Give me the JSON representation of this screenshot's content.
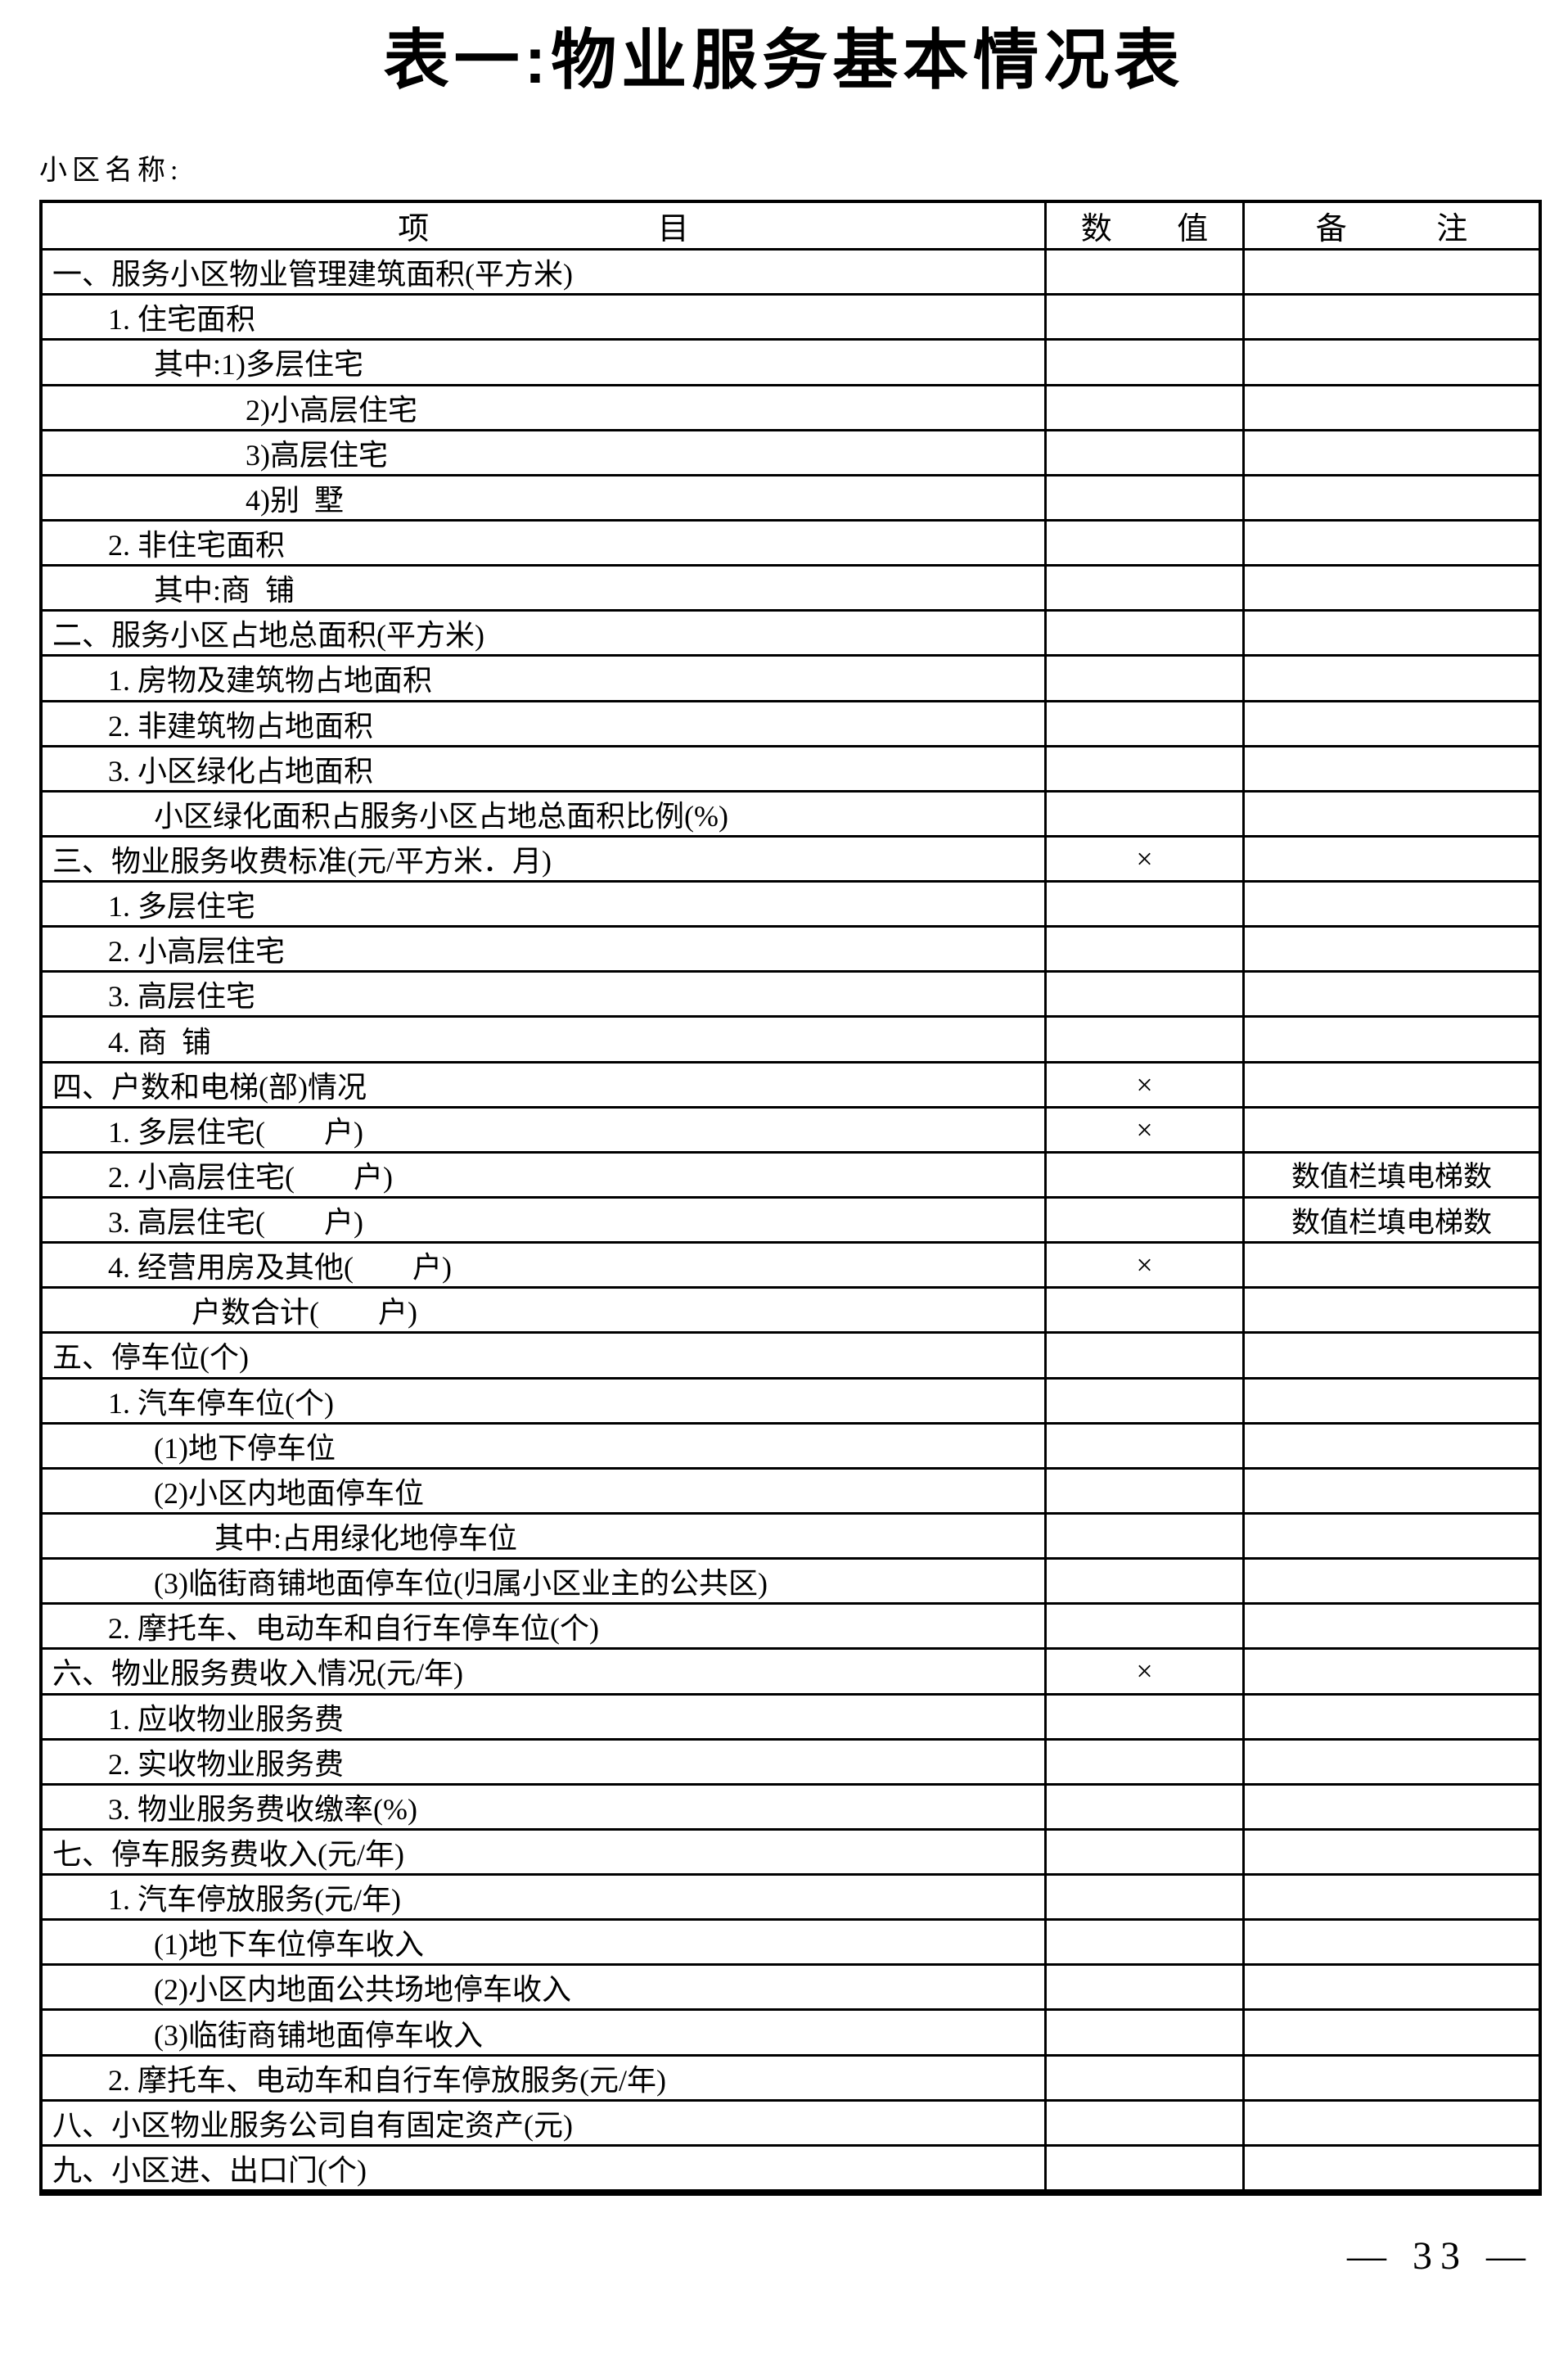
{
  "colors": {
    "ink": "#000000",
    "paper": "#ffffff"
  },
  "page": {
    "title": "表一:物业服务基本情况表",
    "community_label": "小区名称:",
    "page_number": "— 33 —"
  },
  "table": {
    "headers": {
      "item": "项 目",
      "value": "数 值",
      "remark": "备 注"
    },
    "rows": [
      {
        "label": "一、服务小区物业管理建筑面积(平方米)",
        "indent": 0,
        "value": "",
        "remark": ""
      },
      {
        "label": "1. 住宅面积",
        "indent": 1,
        "value": "",
        "remark": ""
      },
      {
        "label": "其中:1)多层住宅",
        "indent": 2,
        "value": "",
        "remark": ""
      },
      {
        "label": "2)小高层住宅",
        "indent": 5,
        "value": "",
        "remark": ""
      },
      {
        "label": "3)高层住宅",
        "indent": 5,
        "value": "",
        "remark": ""
      },
      {
        "label": "4)别  墅",
        "indent": 5,
        "value": "",
        "remark": ""
      },
      {
        "label": "2. 非住宅面积",
        "indent": 1,
        "value": "",
        "remark": ""
      },
      {
        "label": "其中:商  铺",
        "indent": 2,
        "value": "",
        "remark": ""
      },
      {
        "label": "二、服务小区占地总面积(平方米)",
        "indent": 0,
        "value": "",
        "remark": ""
      },
      {
        "label": "1. 房物及建筑物占地面积",
        "indent": 1,
        "value": "",
        "remark": ""
      },
      {
        "label": "2. 非建筑物占地面积",
        "indent": 1,
        "value": "",
        "remark": ""
      },
      {
        "label": "3. 小区绿化占地面积",
        "indent": 1,
        "value": "",
        "remark": ""
      },
      {
        "label": "小区绿化面积占服务小区占地总面积比例(%)",
        "indent": 2,
        "value": "",
        "remark": ""
      },
      {
        "label": "三、物业服务收费标准(元/平方米．月)",
        "indent": 0,
        "value": "×",
        "remark": ""
      },
      {
        "label": "1. 多层住宅",
        "indent": 1,
        "value": "",
        "remark": ""
      },
      {
        "label": "2. 小高层住宅",
        "indent": 1,
        "value": "",
        "remark": ""
      },
      {
        "label": "3. 高层住宅",
        "indent": 1,
        "value": "",
        "remark": ""
      },
      {
        "label": "4. 商  铺",
        "indent": 1,
        "value": "",
        "remark": ""
      },
      {
        "label": "四、户数和电梯(部)情况",
        "indent": 0,
        "value": "×",
        "remark": ""
      },
      {
        "label": "1. 多层住宅(        户)",
        "indent": 1,
        "value": "×",
        "remark": ""
      },
      {
        "label": "2. 小高层住宅(        户)",
        "indent": 1,
        "value": "",
        "remark": "数值栏填电梯数"
      },
      {
        "label": "3. 高层住宅(        户)",
        "indent": 1,
        "value": "",
        "remark": "数值栏填电梯数"
      },
      {
        "label": "4. 经营用房及其他(        户)",
        "indent": 1,
        "value": "×",
        "remark": ""
      },
      {
        "label": "户数合计(        户)",
        "indent": 3,
        "value": "",
        "remark": ""
      },
      {
        "label": "五、停车位(个)",
        "indent": 0,
        "value": "",
        "remark": ""
      },
      {
        "label": "1. 汽车停车位(个)",
        "indent": 1,
        "value": "",
        "remark": ""
      },
      {
        "label": "(1)地下停车位",
        "indent": 2,
        "value": "",
        "remark": ""
      },
      {
        "label": "(2)小区内地面停车位",
        "indent": 2,
        "value": "",
        "remark": ""
      },
      {
        "label": "其中:占用绿化地停车位",
        "indent": 4,
        "value": "",
        "remark": ""
      },
      {
        "label": "(3)临街商铺地面停车位(归属小区业主的公共区)",
        "indent": 2,
        "value": "",
        "remark": ""
      },
      {
        "label": "2. 摩托车、电动车和自行车停车位(个)",
        "indent": 1,
        "value": "",
        "remark": ""
      },
      {
        "label": "六、物业服务费收入情况(元/年)",
        "indent": 0,
        "value": "×",
        "remark": ""
      },
      {
        "label": "1. 应收物业服务费",
        "indent": 1,
        "value": "",
        "remark": ""
      },
      {
        "label": "2. 实收物业服务费",
        "indent": 1,
        "value": "",
        "remark": ""
      },
      {
        "label": "3. 物业服务费收缴率(%)",
        "indent": 1,
        "value": "",
        "remark": ""
      },
      {
        "label": "七、停车服务费收入(元/年)",
        "indent": 0,
        "value": "",
        "remark": ""
      },
      {
        "label": "1. 汽车停放服务(元/年)",
        "indent": 1,
        "value": "",
        "remark": ""
      },
      {
        "label": "(1)地下车位停车收入",
        "indent": 2,
        "value": "",
        "remark": ""
      },
      {
        "label": "(2)小区内地面公共场地停车收入",
        "indent": 2,
        "value": "",
        "remark": ""
      },
      {
        "label": "(3)临街商铺地面停车收入",
        "indent": 2,
        "value": "",
        "remark": ""
      },
      {
        "label": "2. 摩托车、电动车和自行车停放服务(元/年)",
        "indent": 1,
        "value": "",
        "remark": ""
      },
      {
        "label": "八、小区物业服务公司自有固定资产(元)",
        "indent": 0,
        "value": "",
        "remark": ""
      },
      {
        "label": "九、小区进、出口门(个)",
        "indent": 0,
        "value": "",
        "remark": ""
      }
    ]
  }
}
